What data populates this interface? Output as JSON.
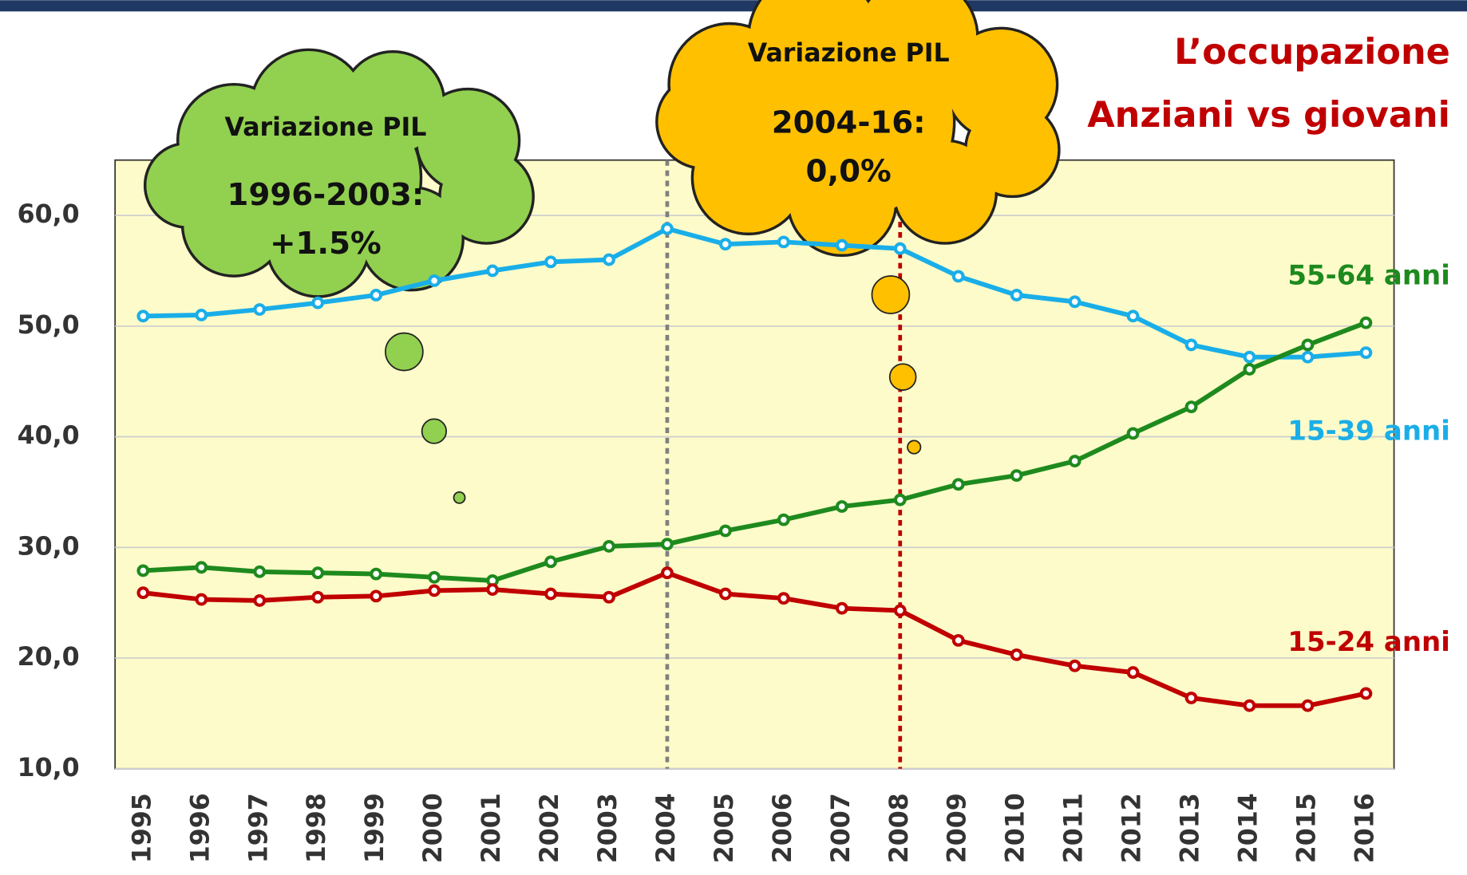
{
  "chart_data": {
    "type": "line",
    "title_lines": [
      "L’occupazione",
      "Anziani vs giovani"
    ],
    "categories": [
      "1995",
      "1996",
      "1997",
      "1998",
      "1999",
      "2000",
      "2001",
      "2002",
      "2003",
      "2004",
      "2005",
      "2006",
      "2007",
      "2008",
      "2009",
      "2010",
      "2011",
      "2012",
      "2013",
      "2014",
      "2015",
      "2016"
    ],
    "series": [
      {
        "name": "15-39 anni",
        "color": "#1aaee8",
        "values": [
          50.9,
          51.0,
          51.5,
          52.1,
          52.8,
          54.1,
          55.0,
          55.8,
          56.0,
          58.8,
          57.4,
          57.6,
          57.3,
          57.0,
          54.5,
          52.8,
          52.2,
          50.9,
          48.3,
          47.2,
          47.2,
          47.6
        ]
      },
      {
        "name": "55-64 anni",
        "color": "#1e8a1e",
        "values": [
          27.9,
          28.2,
          27.8,
          27.7,
          27.6,
          27.3,
          27.0,
          28.7,
          30.1,
          30.3,
          31.5,
          32.5,
          33.7,
          34.3,
          35.7,
          36.5,
          37.8,
          40.3,
          42.7,
          46.1,
          48.3,
          50.3
        ]
      },
      {
        "name": "15-24 anni",
        "color": "#c00000",
        "values": [
          25.9,
          25.3,
          25.2,
          25.5,
          25.6,
          26.1,
          26.2,
          25.8,
          25.5,
          27.7,
          25.8,
          25.4,
          24.5,
          24.3,
          21.6,
          20.3,
          19.3,
          18.7,
          16.4,
          15.7,
          15.7,
          16.8
        ]
      }
    ],
    "ylim": [
      10,
      65
    ],
    "yticks": [
      {
        "value": 10,
        "label": "10,0"
      },
      {
        "value": 20,
        "label": "20,0"
      },
      {
        "value": 30,
        "label": "30,0"
      },
      {
        "value": 40,
        "label": "40,0"
      },
      {
        "value": 50,
        "label": "50,0"
      },
      {
        "value": 60,
        "label": "60,0"
      }
    ],
    "grid": true,
    "plot_background": "#fdfbc9",
    "vlines": [
      {
        "x": "2004",
        "color": "#808080"
      },
      {
        "x": "2008",
        "color": "#c00000"
      }
    ],
    "annotations": [
      {
        "title": "Variazione PIL",
        "period": "1996-2003:",
        "value": "+1.5%",
        "color": "#92d050"
      },
      {
        "title": "Variazione PIL",
        "period": "2004-16:",
        "value": "0,0%",
        "color": "#ffc000"
      }
    ]
  }
}
